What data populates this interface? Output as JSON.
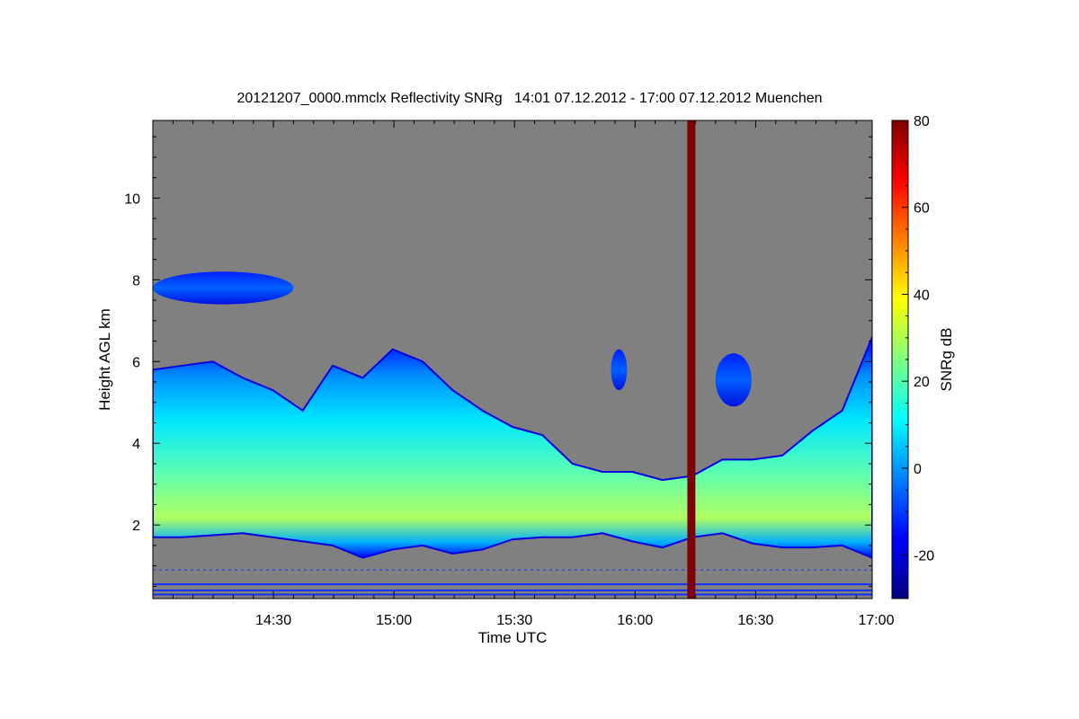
{
  "chart_data": {
    "type": "heatmap",
    "title": "20121207_0000.mmclx Reflectivity SNRg   14:01 07.12.2012 - 17:00 07.12.2012 Muenchen",
    "xlabel": "Time UTC",
    "ylabel": "Height AGL km",
    "colorbar_label": "SNRg dB",
    "x_range": [
      "14:01",
      "17:00"
    ],
    "y_range_km": [
      0.2,
      11.9
    ],
    "z_range_db": [
      -30,
      80
    ],
    "x_ticks": [
      "14:30",
      "15:00",
      "15:30",
      "16:00",
      "16:30",
      "17:00"
    ],
    "x_tick_minutes": [
      30,
      60,
      90,
      120,
      150,
      180
    ],
    "y_ticks": [
      2,
      4,
      6,
      8,
      10
    ],
    "colorbar_ticks": [
      -20,
      0,
      20,
      40,
      60,
      80
    ],
    "background_color": "#808080",
    "colormap": [
      "#00007f",
      "#0000ff",
      "#0080ff",
      "#00ffff",
      "#80ff80",
      "#ffff00",
      "#ff8000",
      "#ff0000",
      "#7f0000"
    ],
    "saturated_column": {
      "start": "16:14",
      "end": "16:16",
      "value_db": 80
    },
    "cloud_layers": [
      {
        "name": "main",
        "top_km": [
          5.8,
          5.9,
          6.0,
          5.6,
          5.3,
          4.8,
          5.9,
          5.6,
          6.3,
          6.0,
          5.3,
          4.8,
          4.4,
          4.2,
          3.5,
          3.3,
          3.3,
          3.1,
          3.2,
          3.6,
          3.6,
          3.7,
          4.3,
          4.8,
          6.6
        ],
        "base_km": [
          1.7,
          1.7,
          1.75,
          1.8,
          1.7,
          1.6,
          1.5,
          1.2,
          1.4,
          1.5,
          1.3,
          1.4,
          1.65,
          1.7,
          1.7,
          1.8,
          1.6,
          1.45,
          1.7,
          1.8,
          1.55,
          1.45,
          1.45,
          1.5,
          1.2
        ]
      },
      {
        "name": "upper",
        "start_min": 0,
        "end_min": 35,
        "top_km": 8.2,
        "base_km": 7.4
      },
      {
        "name": "patch1",
        "start_min": 114,
        "end_min": 118,
        "top_km": 6.3,
        "base_km": 5.3
      },
      {
        "name": "patch2",
        "start_min": 140,
        "end_min": 149,
        "top_km": 6.2,
        "base_km": 4.9
      }
    ]
  }
}
